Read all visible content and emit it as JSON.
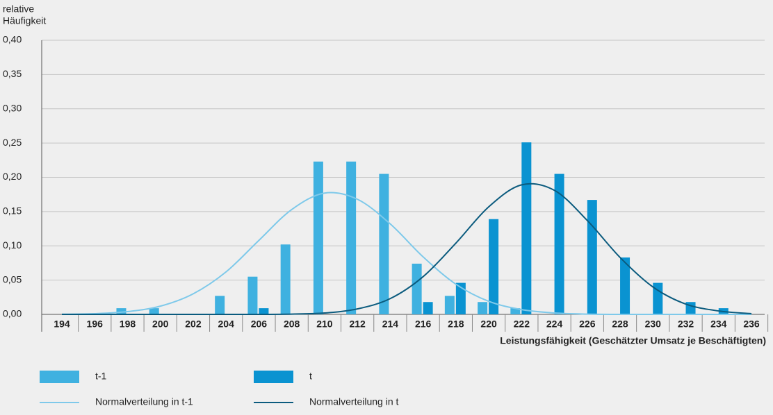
{
  "chart_data": {
    "type": "bar",
    "ylabel": [
      "relative",
      "Häufigkeit"
    ],
    "xlabel": "Leistungsfähigkeit (Geschätzter Umsatz je Beschäftigten)",
    "categories": [
      "194",
      "196",
      "198",
      "200",
      "202",
      "204",
      "206",
      "208",
      "210",
      "212",
      "214",
      "216",
      "218",
      "220",
      "222",
      "224",
      "226",
      "228",
      "230",
      "232",
      "234",
      "236"
    ],
    "series": [
      {
        "name": "t-1",
        "type": "bar",
        "color": "#3fb1e0",
        "values": [
          0,
          0,
          0.009,
          0.009,
          0,
          0.027,
          0.055,
          0.102,
          0.223,
          0.223,
          0.205,
          0.074,
          0.027,
          0.018,
          0.009,
          0,
          0,
          0,
          0,
          0,
          0,
          0
        ]
      },
      {
        "name": "t",
        "type": "bar",
        "color": "#0a93d1",
        "values": [
          0,
          0,
          0,
          0,
          0,
          0,
          0.009,
          0,
          0,
          0,
          0,
          0.018,
          0.046,
          0.139,
          0.251,
          0.205,
          0.167,
          0.083,
          0.046,
          0.018,
          0.009,
          0
        ]
      },
      {
        "name": "Normalverteilung in t-1",
        "type": "line",
        "color": "#7ec9ea",
        "values": [
          0.0002,
          0.001,
          0.004,
          0.012,
          0.03,
          0.062,
          0.108,
          0.153,
          0.177,
          0.168,
          0.132,
          0.084,
          0.044,
          0.019,
          0.007,
          0.002,
          0.0004,
          0,
          0,
          0,
          0,
          0
        ]
      },
      {
        "name": "Normalverteilung in t",
        "type": "line",
        "color": "#0b5b7e",
        "values": [
          0,
          0,
          0,
          0,
          0,
          0,
          0,
          0.0004,
          0.002,
          0.008,
          0.023,
          0.055,
          0.104,
          0.157,
          0.189,
          0.181,
          0.137,
          0.083,
          0.04,
          0.015,
          0.005,
          0.001
        ]
      }
    ],
    "ylim": [
      0,
      0.4
    ],
    "yticks": [
      {
        "value": 0,
        "label": "0,00"
      },
      {
        "value": 0.05,
        "label": "0,05"
      },
      {
        "value": 0.1,
        "label": "0,10"
      },
      {
        "value": 0.15,
        "label": "0,15"
      },
      {
        "value": 0.2,
        "label": "0,20"
      },
      {
        "value": 0.25,
        "label": "0,25"
      },
      {
        "value": 0.3,
        "label": "0,30"
      },
      {
        "value": 0.35,
        "label": "0,35"
      },
      {
        "value": 0.4,
        "label": "0,40"
      }
    ],
    "grid": true
  }
}
